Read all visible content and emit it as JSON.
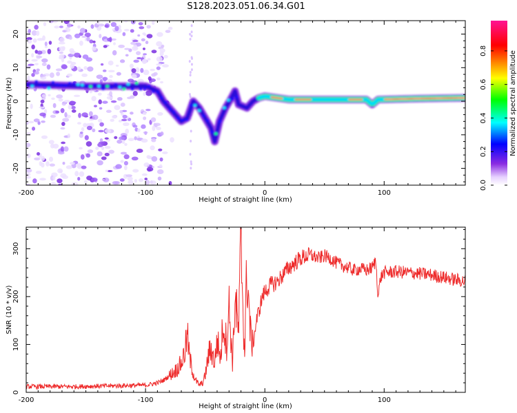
{
  "title": "S128.2023.051.06.34.G01",
  "colors": {
    "snr_line": "#ee2a2a",
    "axis": "#000000",
    "background": "#ffffff"
  },
  "chart_data": [
    {
      "type": "heatmap",
      "title": "",
      "xlabel": "Height of straight line (km)",
      "ylabel": "Frequency (Hz)",
      "xlim": [
        -200,
        168
      ],
      "ylim": [
        -25,
        24
      ],
      "x_ticks": [
        -200,
        -100,
        0,
        100
      ],
      "y_ticks": [
        -20,
        -10,
        0,
        10,
        20
      ],
      "colorbar": {
        "label": "Normalized spectral amplitude",
        "range": [
          0.0,
          0.98
        ],
        "ticks": [
          0.0,
          0.2,
          0.4,
          0.6,
          0.8
        ],
        "tick_labels": [
          "0.0",
          "0.2",
          "0.4",
          "0.6",
          "0.8"
        ],
        "colormap": [
          "#ffffff",
          "#e6d0ff",
          "#8a2be2",
          "#0000ff",
          "#00ffff",
          "#00ff00",
          "#ffff00",
          "#ff0000",
          "#ff1493"
        ]
      },
      "ridge": [
        {
          "x": -200,
          "y": 5
        },
        {
          "x": -150,
          "y": 4.5
        },
        {
          "x": -100,
          "y": 4.5
        },
        {
          "x": -90,
          "y": 3
        },
        {
          "x": -85,
          "y": 0
        },
        {
          "x": -80,
          "y": -2
        },
        {
          "x": -75,
          "y": -4
        },
        {
          "x": -70,
          "y": -6
        },
        {
          "x": -65,
          "y": -5
        },
        {
          "x": -60,
          "y": 0
        },
        {
          "x": -55,
          "y": -2
        },
        {
          "x": -50,
          "y": -5
        },
        {
          "x": -45,
          "y": -8
        },
        {
          "x": -42,
          "y": -12
        },
        {
          "x": -38,
          "y": -6
        },
        {
          "x": -33,
          "y": -2
        },
        {
          "x": -28,
          "y": 1
        },
        {
          "x": -25,
          "y": 3
        },
        {
          "x": -22,
          "y": -1
        },
        {
          "x": -15,
          "y": -2
        },
        {
          "x": -10,
          "y": 0
        },
        {
          "x": -5,
          "y": 1
        },
        {
          "x": 0,
          "y": 1.5
        },
        {
          "x": 20,
          "y": 0.5
        },
        {
          "x": 50,
          "y": 0.5
        },
        {
          "x": 85,
          "y": 0.5
        },
        {
          "x": 90,
          "y": -1
        },
        {
          "x": 95,
          "y": 0.5
        },
        {
          "x": 130,
          "y": 0.8
        },
        {
          "x": 168,
          "y": 1
        }
      ]
    },
    {
      "type": "line",
      "title": "",
      "xlabel": "Height of straight line (km)",
      "ylabel": "SNR (10 * v/v)",
      "xlim": [
        -200,
        168
      ],
      "ylim": [
        0,
        345
      ],
      "x_ticks": [
        -200,
        -100,
        0,
        100
      ],
      "y_ticks": [
        0,
        100,
        200,
        300
      ],
      "series": [
        {
          "x": [
            -200,
            -180,
            -160,
            -140,
            -120,
            -100,
            -95,
            -90,
            -85,
            -80,
            -75,
            -70,
            -67,
            -65,
            -63,
            -60,
            -58,
            -55,
            -52,
            -50,
            -47,
            -45,
            -42,
            -40,
            -37,
            -35,
            -32,
            -30,
            -27,
            -25,
            -22,
            -20,
            -17,
            -15,
            -12,
            -10,
            -7,
            -5,
            -2,
            0,
            5,
            10,
            15,
            20,
            25,
            30,
            35,
            40,
            45,
            50,
            55,
            60,
            65,
            70,
            75,
            80,
            85,
            90,
            93,
            95,
            97,
            100,
            110,
            120,
            130,
            140,
            150,
            160,
            168
          ],
          "values": [
            12,
            12,
            12,
            13,
            14,
            15,
            17,
            20,
            25,
            35,
            45,
            60,
            85,
            120,
            70,
            40,
            25,
            15,
            20,
            35,
            80,
            90,
            60,
            110,
            70,
            150,
            100,
            180,
            60,
            200,
            120,
            320,
            80,
            260,
            120,
            100,
            150,
            170,
            200,
            210,
            225,
            230,
            245,
            260,
            270,
            280,
            285,
            285,
            280,
            285,
            280,
            270,
            265,
            260,
            255,
            258,
            255,
            260,
            275,
            200,
            240,
            250,
            252,
            250,
            248,
            245,
            240,
            235,
            232
          ]
        }
      ]
    }
  ]
}
